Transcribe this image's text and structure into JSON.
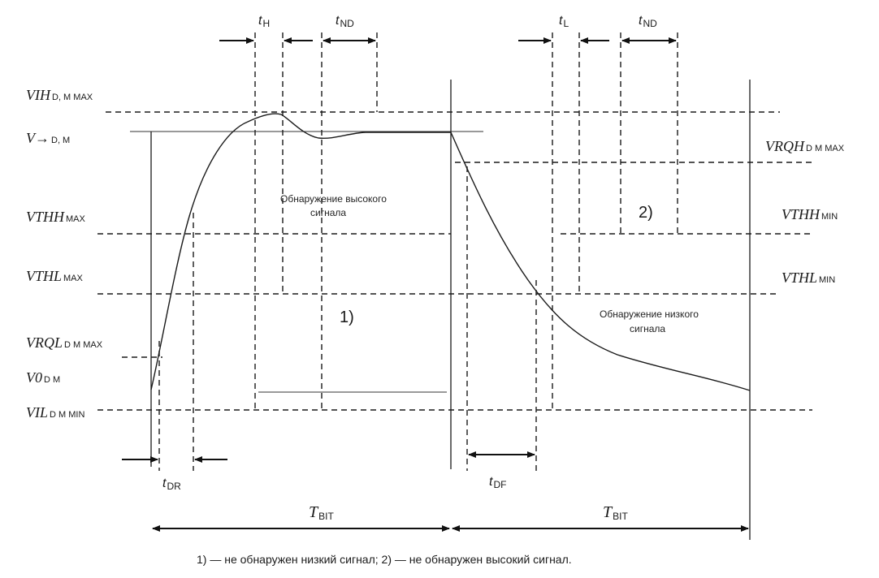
{
  "voltage_labels": [
    {
      "id": "vih-max",
      "main": "VIH",
      "sub": "D, M MAX"
    },
    {
      "id": "v-dm",
      "main": "V→",
      "sub": "D, M"
    },
    {
      "id": "vthh-max",
      "main": "VTHH",
      "sub": "MAX"
    },
    {
      "id": "vthl-max",
      "main": "VTHL",
      "sub": "MAX"
    },
    {
      "id": "vrql-max",
      "main": "VRQL",
      "sub": "D  M MAX"
    },
    {
      "id": "v0-dm",
      "main": "V0",
      "sub": "D  M"
    },
    {
      "id": "vil-min",
      "main": "VIL",
      "sub": "D  M MIN"
    },
    {
      "id": "vrqh-max",
      "main": "VRQH",
      "sub": "D  M MAX"
    },
    {
      "id": "vthh-min",
      "main": "VTHH",
      "sub": "MIN"
    },
    {
      "id": "vthl-min",
      "main": "VTHL",
      "sub": "MIN"
    }
  ],
  "timing_labels": [
    {
      "id": "t-h",
      "main": "t",
      "sub": "H"
    },
    {
      "id": "t-nd-1",
      "main": "t",
      "sub": "ND"
    },
    {
      "id": "t-l",
      "main": "t",
      "sub": "L"
    },
    {
      "id": "t-nd-2",
      "main": "t",
      "sub": "ND"
    },
    {
      "id": "t-dr",
      "main": "t",
      "sub": "DR"
    },
    {
      "id": "t-df",
      "main": "t",
      "sub": "DF"
    }
  ],
  "bit_labels": [
    {
      "id": "t-bit-1",
      "main": "T",
      "sub": "BIT"
    },
    {
      "id": "t-bit-2",
      "main": "T",
      "sub": "BIT"
    }
  ],
  "region_notes": {
    "high_line1": "Обнаружение высокого",
    "high_line2": "сигнала",
    "low_line1": "Обнаружение низкого",
    "low_line2": "сигнала"
  },
  "markers": {
    "m1": "1)",
    "m2": "2)"
  },
  "caption": "1) — не обнаружен низкий сигнал; 2) — не обнаружен высокий сигнал."
}
